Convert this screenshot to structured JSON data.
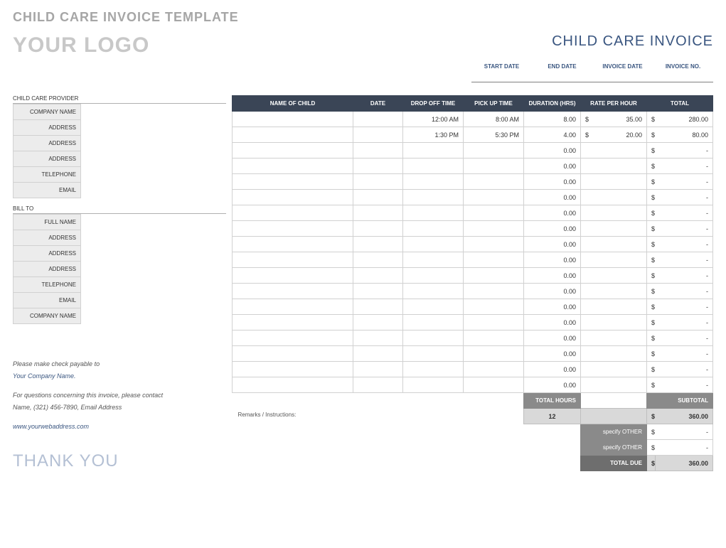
{
  "template_title": "CHILD CARE INVOICE TEMPLATE",
  "logo_text": "YOUR LOGO",
  "invoice_title": "CHILD CARE INVOICE",
  "meta": {
    "start_date_label": "START DATE",
    "end_date_label": "END DATE",
    "invoice_date_label": "INVOICE DATE",
    "invoice_no_label": "INVOICE NO.",
    "start_date": "",
    "end_date": "",
    "invoice_date": "",
    "invoice_no": ""
  },
  "provider": {
    "section_label": "CHILD CARE PROVIDER",
    "fields": [
      {
        "label": "COMPANY NAME",
        "value": ""
      },
      {
        "label": "ADDRESS",
        "value": ""
      },
      {
        "label": "ADDRESS",
        "value": ""
      },
      {
        "label": "ADDRESS",
        "value": ""
      },
      {
        "label": "TELEPHONE",
        "value": ""
      },
      {
        "label": "EMAIL",
        "value": ""
      }
    ]
  },
  "bill_to": {
    "section_label": "BILL TO",
    "fields": [
      {
        "label": "FULL NAME",
        "value": ""
      },
      {
        "label": "ADDRESS",
        "value": ""
      },
      {
        "label": "ADDRESS",
        "value": ""
      },
      {
        "label": "ADDRESS",
        "value": ""
      },
      {
        "label": "TELEPHONE",
        "value": ""
      },
      {
        "label": "EMAIL",
        "value": ""
      },
      {
        "label": "COMPANY NAME",
        "value": ""
      }
    ]
  },
  "columns": {
    "name": "NAME OF CHILD",
    "date": "DATE",
    "drop": "DROP OFF TIME",
    "pick": "PICK UP TIME",
    "duration": "DURATION (HRS)",
    "rate": "RATE PER HOUR",
    "total": "TOTAL"
  },
  "rows": [
    {
      "name": "",
      "date": "",
      "drop": "12:00 AM",
      "pick": "8:00 AM",
      "duration": "8.00",
      "rate_sym": "$",
      "rate": "35.00",
      "total_sym": "$",
      "total": "280.00"
    },
    {
      "name": "",
      "date": "",
      "drop": "1:30 PM",
      "pick": "5:30 PM",
      "duration": "4.00",
      "rate_sym": "$",
      "rate": "20.00",
      "total_sym": "$",
      "total": "80.00"
    },
    {
      "name": "",
      "date": "",
      "drop": "",
      "pick": "",
      "duration": "0.00",
      "rate_sym": "",
      "rate": "",
      "total_sym": "$",
      "total": "-"
    },
    {
      "name": "",
      "date": "",
      "drop": "",
      "pick": "",
      "duration": "0.00",
      "rate_sym": "",
      "rate": "",
      "total_sym": "$",
      "total": "-"
    },
    {
      "name": "",
      "date": "",
      "drop": "",
      "pick": "",
      "duration": "0.00",
      "rate_sym": "",
      "rate": "",
      "total_sym": "$",
      "total": "-"
    },
    {
      "name": "",
      "date": "",
      "drop": "",
      "pick": "",
      "duration": "0.00",
      "rate_sym": "",
      "rate": "",
      "total_sym": "$",
      "total": "-"
    },
    {
      "name": "",
      "date": "",
      "drop": "",
      "pick": "",
      "duration": "0.00",
      "rate_sym": "",
      "rate": "",
      "total_sym": "$",
      "total": "-"
    },
    {
      "name": "",
      "date": "",
      "drop": "",
      "pick": "",
      "duration": "0.00",
      "rate_sym": "",
      "rate": "",
      "total_sym": "$",
      "total": "-"
    },
    {
      "name": "",
      "date": "",
      "drop": "",
      "pick": "",
      "duration": "0.00",
      "rate_sym": "",
      "rate": "",
      "total_sym": "$",
      "total": "-"
    },
    {
      "name": "",
      "date": "",
      "drop": "",
      "pick": "",
      "duration": "0.00",
      "rate_sym": "",
      "rate": "",
      "total_sym": "$",
      "total": "-"
    },
    {
      "name": "",
      "date": "",
      "drop": "",
      "pick": "",
      "duration": "0.00",
      "rate_sym": "",
      "rate": "",
      "total_sym": "$",
      "total": "-"
    },
    {
      "name": "",
      "date": "",
      "drop": "",
      "pick": "",
      "duration": "0.00",
      "rate_sym": "",
      "rate": "",
      "total_sym": "$",
      "total": "-"
    },
    {
      "name": "",
      "date": "",
      "drop": "",
      "pick": "",
      "duration": "0.00",
      "rate_sym": "",
      "rate": "",
      "total_sym": "$",
      "total": "-"
    },
    {
      "name": "",
      "date": "",
      "drop": "",
      "pick": "",
      "duration": "0.00",
      "rate_sym": "",
      "rate": "",
      "total_sym": "$",
      "total": "-"
    },
    {
      "name": "",
      "date": "",
      "drop": "",
      "pick": "",
      "duration": "0.00",
      "rate_sym": "",
      "rate": "",
      "total_sym": "$",
      "total": "-"
    },
    {
      "name": "",
      "date": "",
      "drop": "",
      "pick": "",
      "duration": "0.00",
      "rate_sym": "",
      "rate": "",
      "total_sym": "$",
      "total": "-"
    },
    {
      "name": "",
      "date": "",
      "drop": "",
      "pick": "",
      "duration": "0.00",
      "rate_sym": "",
      "rate": "",
      "total_sym": "$",
      "total": "-"
    },
    {
      "name": "",
      "date": "",
      "drop": "",
      "pick": "",
      "duration": "0.00",
      "rate_sym": "",
      "rate": "",
      "total_sym": "$",
      "total": "-"
    }
  ],
  "totals": {
    "hours_label": "TOTAL HOURS",
    "hours_value": "12",
    "subtotal_label": "SUBTOTAL",
    "subtotal_sym": "$",
    "subtotal_value": "360.00",
    "remarks_label": "Remarks / Instructions:",
    "other1_label": "specify OTHER",
    "other1_sym": "$",
    "other1_value": "-",
    "other2_label": "specify OTHER",
    "other2_sym": "$",
    "other2_value": "-",
    "due_label": "TOTAL DUE",
    "due_sym": "$",
    "due_value": "360.00"
  },
  "notes": {
    "line1": "Please make check payable to",
    "company": "Your Company Name.",
    "line2": "For questions concerning this invoice, please contact",
    "contact": "Name, (321) 456-7890, Email Address",
    "web": "www.yourwebaddress.com"
  },
  "thank_you": "THANK YOU",
  "colors": {
    "header_bg": "#3a4556",
    "accent": "#3a5680",
    "gray_fill": "#d9d9d9",
    "dark_gray": "#8a8a8a",
    "border": "#d1d1d1",
    "label_bg": "#ececec",
    "logo_gray": "#c8c8c8",
    "title_gray": "#a6a6a6"
  },
  "col_widths": {
    "name": 170,
    "date": 70,
    "drop": 85,
    "pick": 85,
    "duration": 80,
    "rate": 85,
    "total": 85
  }
}
